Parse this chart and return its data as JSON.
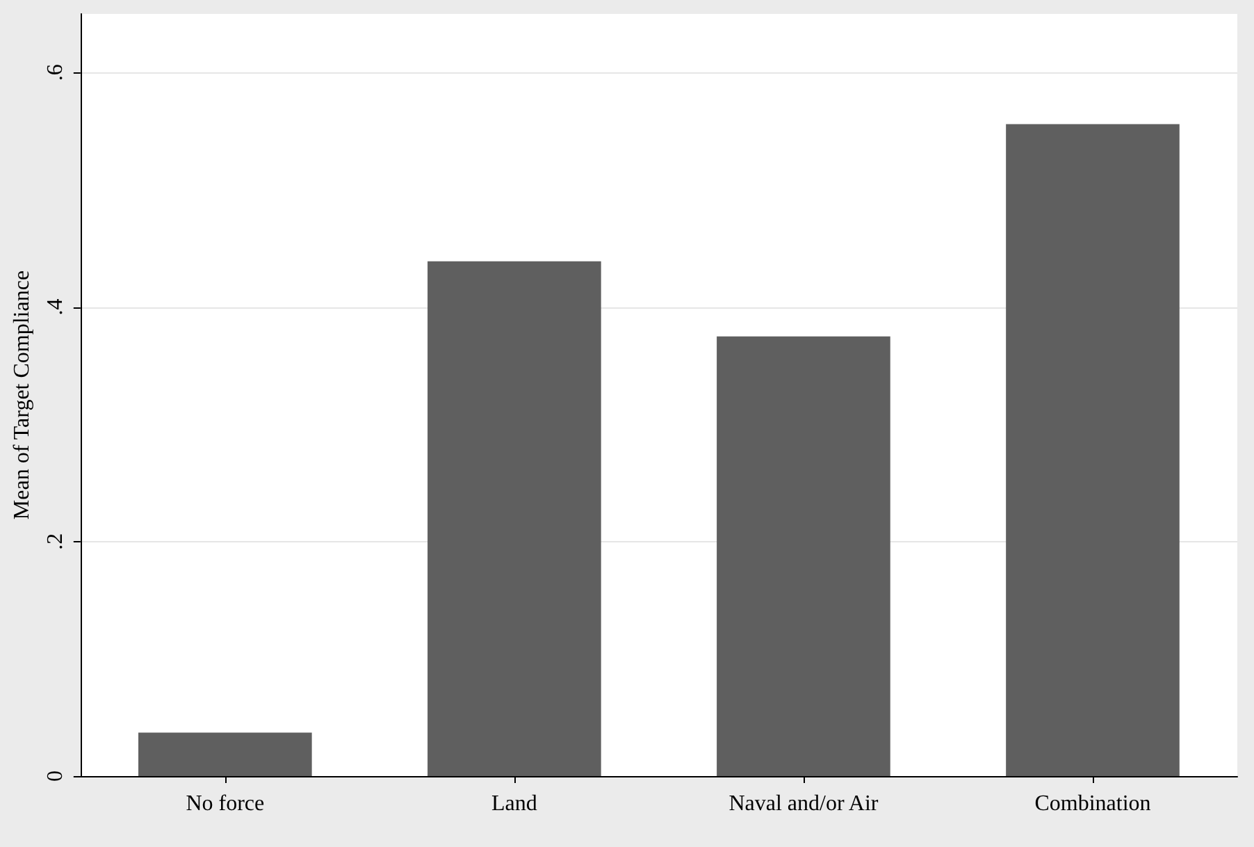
{
  "chart_data": {
    "type": "bar",
    "ylabel": "Mean of Target Compliance",
    "categories": [
      "No force",
      "Land",
      "Naval and/or Air",
      "Combination"
    ],
    "values": [
      0.037,
      0.439,
      0.375,
      0.556
    ],
    "color": "#5f5f5f",
    "ylim": [
      0,
      0.65
    ],
    "yticks": [
      {
        "value": 0,
        "label": "0"
      },
      {
        "value": 0.2,
        "label": ".2"
      },
      {
        "value": 0.4,
        "label": ".4"
      },
      {
        "value": 0.6,
        "label": ".6"
      }
    ],
    "grid": "y"
  }
}
